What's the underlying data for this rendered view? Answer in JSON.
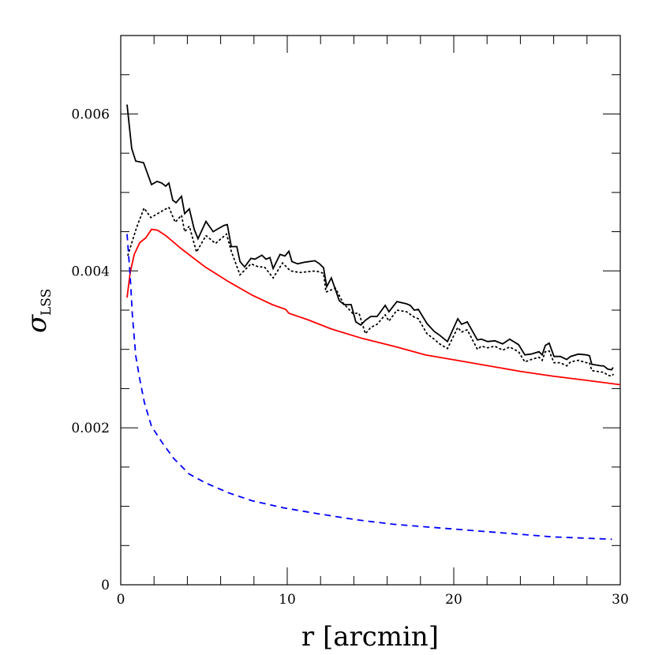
{
  "chart_data": {
    "type": "line",
    "title": "",
    "xlabel": "r [arcmin]",
    "ylabel": {
      "symbol": "σ",
      "subscript": "LSS"
    },
    "xlim": [
      0,
      30
    ],
    "ylim": [
      0,
      0.007
    ],
    "x_ticks": [
      0,
      10,
      20,
      30
    ],
    "x_tick_labels": [
      "0",
      "10",
      "20",
      "30"
    ],
    "y_ticks": [
      0,
      0.002,
      0.004,
      0.006
    ],
    "y_tick_labels": [
      "0",
      "0.002",
      "0.004",
      "0.006"
    ],
    "x_minor_step": 2,
    "y_minor_step": 0.0005,
    "grid": false,
    "legend": "none",
    "series": [
      {
        "style": "solid",
        "color": "#000000",
        "x": [
          0.38,
          0.66,
          0.9,
          1.37,
          1.85,
          2.18,
          2.46,
          2.7,
          2.89,
          3.13,
          3.32,
          3.65,
          3.84,
          4.12,
          4.41,
          4.64,
          5.12,
          5.55,
          5.78,
          6.21,
          6.4,
          6.64,
          6.97,
          7.16,
          7.44,
          7.82,
          8.06,
          8.48,
          8.72,
          8.96,
          9.15,
          9.57,
          9.86,
          10.1,
          10.28,
          10.62,
          11.04,
          11.66,
          11.94,
          12.18,
          12.37,
          12.65,
          13.13,
          13.41,
          13.84,
          14.12,
          14.41,
          14.69,
          15.02,
          15.4,
          15.88,
          16.11,
          16.59,
          17.16,
          17.39,
          17.63,
          17.87,
          18.39,
          18.82,
          19.15,
          19.62,
          20.24,
          20.47,
          20.81,
          21.42,
          21.66,
          22.04,
          22.46,
          22.94,
          23.36,
          23.89,
          24.27,
          24.64,
          25.12,
          25.31,
          25.5,
          25.73,
          26.02,
          26.4,
          26.78,
          27.01,
          27.49,
          27.96,
          28.15,
          28.29,
          28.86,
          29.0,
          29.24,
          29.48,
          29.57
        ],
        "y": [
          0.00612,
          0.00556,
          0.0054,
          0.00538,
          0.0051,
          0.00514,
          0.00512,
          0.00508,
          0.00512,
          0.0049,
          0.00487,
          0.00495,
          0.00473,
          0.00479,
          0.00453,
          0.00441,
          0.00463,
          0.0045,
          0.00453,
          0.00458,
          0.00459,
          0.00431,
          0.00431,
          0.00412,
          0.00405,
          0.00416,
          0.00415,
          0.0042,
          0.00415,
          0.00417,
          0.00403,
          0.00421,
          0.00419,
          0.00425,
          0.00412,
          0.00409,
          0.00411,
          0.00413,
          0.00409,
          0.00404,
          0.0038,
          0.00391,
          0.00362,
          0.00357,
          0.00357,
          0.00335,
          0.00331,
          0.00337,
          0.00342,
          0.00342,
          0.00356,
          0.00348,
          0.00361,
          0.00358,
          0.00356,
          0.0035,
          0.00351,
          0.00333,
          0.00323,
          0.00318,
          0.0031,
          0.00339,
          0.00332,
          0.00335,
          0.00312,
          0.00313,
          0.0031,
          0.00311,
          0.00307,
          0.00313,
          0.00306,
          0.00293,
          0.00294,
          0.00297,
          0.00293,
          0.00305,
          0.00308,
          0.00291,
          0.00291,
          0.00287,
          0.00291,
          0.00294,
          0.00293,
          0.00292,
          0.00281,
          0.00279,
          0.00279,
          0.00275,
          0.00274,
          0.00277
        ]
      },
      {
        "style": "dotted",
        "color": "#000000",
        "x": [
          0.43,
          0.95,
          1.4,
          1.81,
          2.46,
          2.89,
          3.27,
          3.65,
          3.84,
          4.12,
          4.55,
          5.12,
          5.69,
          6.35,
          6.64,
          7.16,
          7.82,
          8.29,
          8.63,
          9.15,
          9.72,
          10.19,
          10.76,
          11.71,
          12.18,
          12.32,
          12.89,
          13.36,
          13.93,
          14.31,
          14.69,
          15.02,
          15.4,
          15.88,
          16.11,
          16.59,
          17.16,
          17.63,
          17.87,
          18.39,
          18.82,
          19.15,
          19.62,
          20.24,
          20.47,
          20.81,
          21.42,
          21.66,
          22.04,
          22.46,
          22.94,
          23.36,
          23.89,
          24.27,
          24.64,
          25.12,
          25.31,
          25.5,
          25.73,
          26.02,
          26.4,
          26.78,
          27.01,
          27.49,
          27.96,
          28.15,
          28.29,
          28.86,
          29.0,
          29.24,
          29.48,
          29.57
        ],
        "y": [
          0.0042,
          0.00455,
          0.0048,
          0.00468,
          0.00476,
          0.00481,
          0.00462,
          0.00471,
          0.0045,
          0.00457,
          0.00424,
          0.00445,
          0.00435,
          0.00447,
          0.00425,
          0.00395,
          0.00409,
          0.00405,
          0.00405,
          0.00391,
          0.0041,
          0.004,
          0.00398,
          0.004,
          0.00397,
          0.00373,
          0.00378,
          0.00359,
          0.00346,
          0.00346,
          0.0032,
          0.00328,
          0.00332,
          0.00344,
          0.00336,
          0.0035,
          0.00348,
          0.00341,
          0.00339,
          0.0032,
          0.00313,
          0.00307,
          0.00301,
          0.00328,
          0.00322,
          0.00325,
          0.003,
          0.00304,
          0.00302,
          0.00304,
          0.00299,
          0.00303,
          0.00297,
          0.00284,
          0.00287,
          0.0029,
          0.00286,
          0.00297,
          0.00298,
          0.00283,
          0.00283,
          0.00279,
          0.00284,
          0.00286,
          0.00283,
          0.00283,
          0.00273,
          0.00271,
          0.00271,
          0.00267,
          0.00266,
          0.00268
        ]
      },
      {
        "style": "solid",
        "color": "#ff0000",
        "x": [
          0.38,
          0.57,
          0.81,
          1.14,
          1.5,
          1.85,
          2.2,
          2.7,
          3.65,
          5.07,
          6.5,
          7.9,
          9.1,
          9.9,
          10.1,
          11.2,
          12.65,
          14.5,
          16.4,
          18.3,
          20.2,
          22.1,
          24.0,
          25.9,
          27.8,
          30.0
        ],
        "y": [
          0.00366,
          0.00398,
          0.00421,
          0.00436,
          0.00442,
          0.00453,
          0.00452,
          0.00445,
          0.00428,
          0.00405,
          0.00386,
          0.00369,
          0.00357,
          0.00351,
          0.00346,
          0.00338,
          0.00326,
          0.00314,
          0.00304,
          0.00293,
          0.00286,
          0.00279,
          0.00272,
          0.00266,
          0.00261,
          0.00255
        ]
      },
      {
        "style": "dashed",
        "color": "#0000ff",
        "x": [
          0.38,
          0.57,
          0.7,
          0.9,
          1.14,
          1.42,
          1.85,
          2.46,
          3.18,
          4.12,
          5.07,
          6.5,
          7.9,
          9.8,
          11.7,
          14.1,
          16.4,
          18.8,
          21.2,
          23.6,
          25.9,
          29.5
        ],
        "y": [
          0.00447,
          0.00393,
          0.00343,
          0.00292,
          0.00262,
          0.00232,
          0.00202,
          0.00182,
          0.00161,
          0.00141,
          0.0013,
          0.00117,
          0.00107,
          0.00098,
          0.00091,
          0.00083,
          0.00077,
          0.00073,
          0.00069,
          0.00065,
          0.00061,
          0.00058
        ]
      }
    ]
  }
}
